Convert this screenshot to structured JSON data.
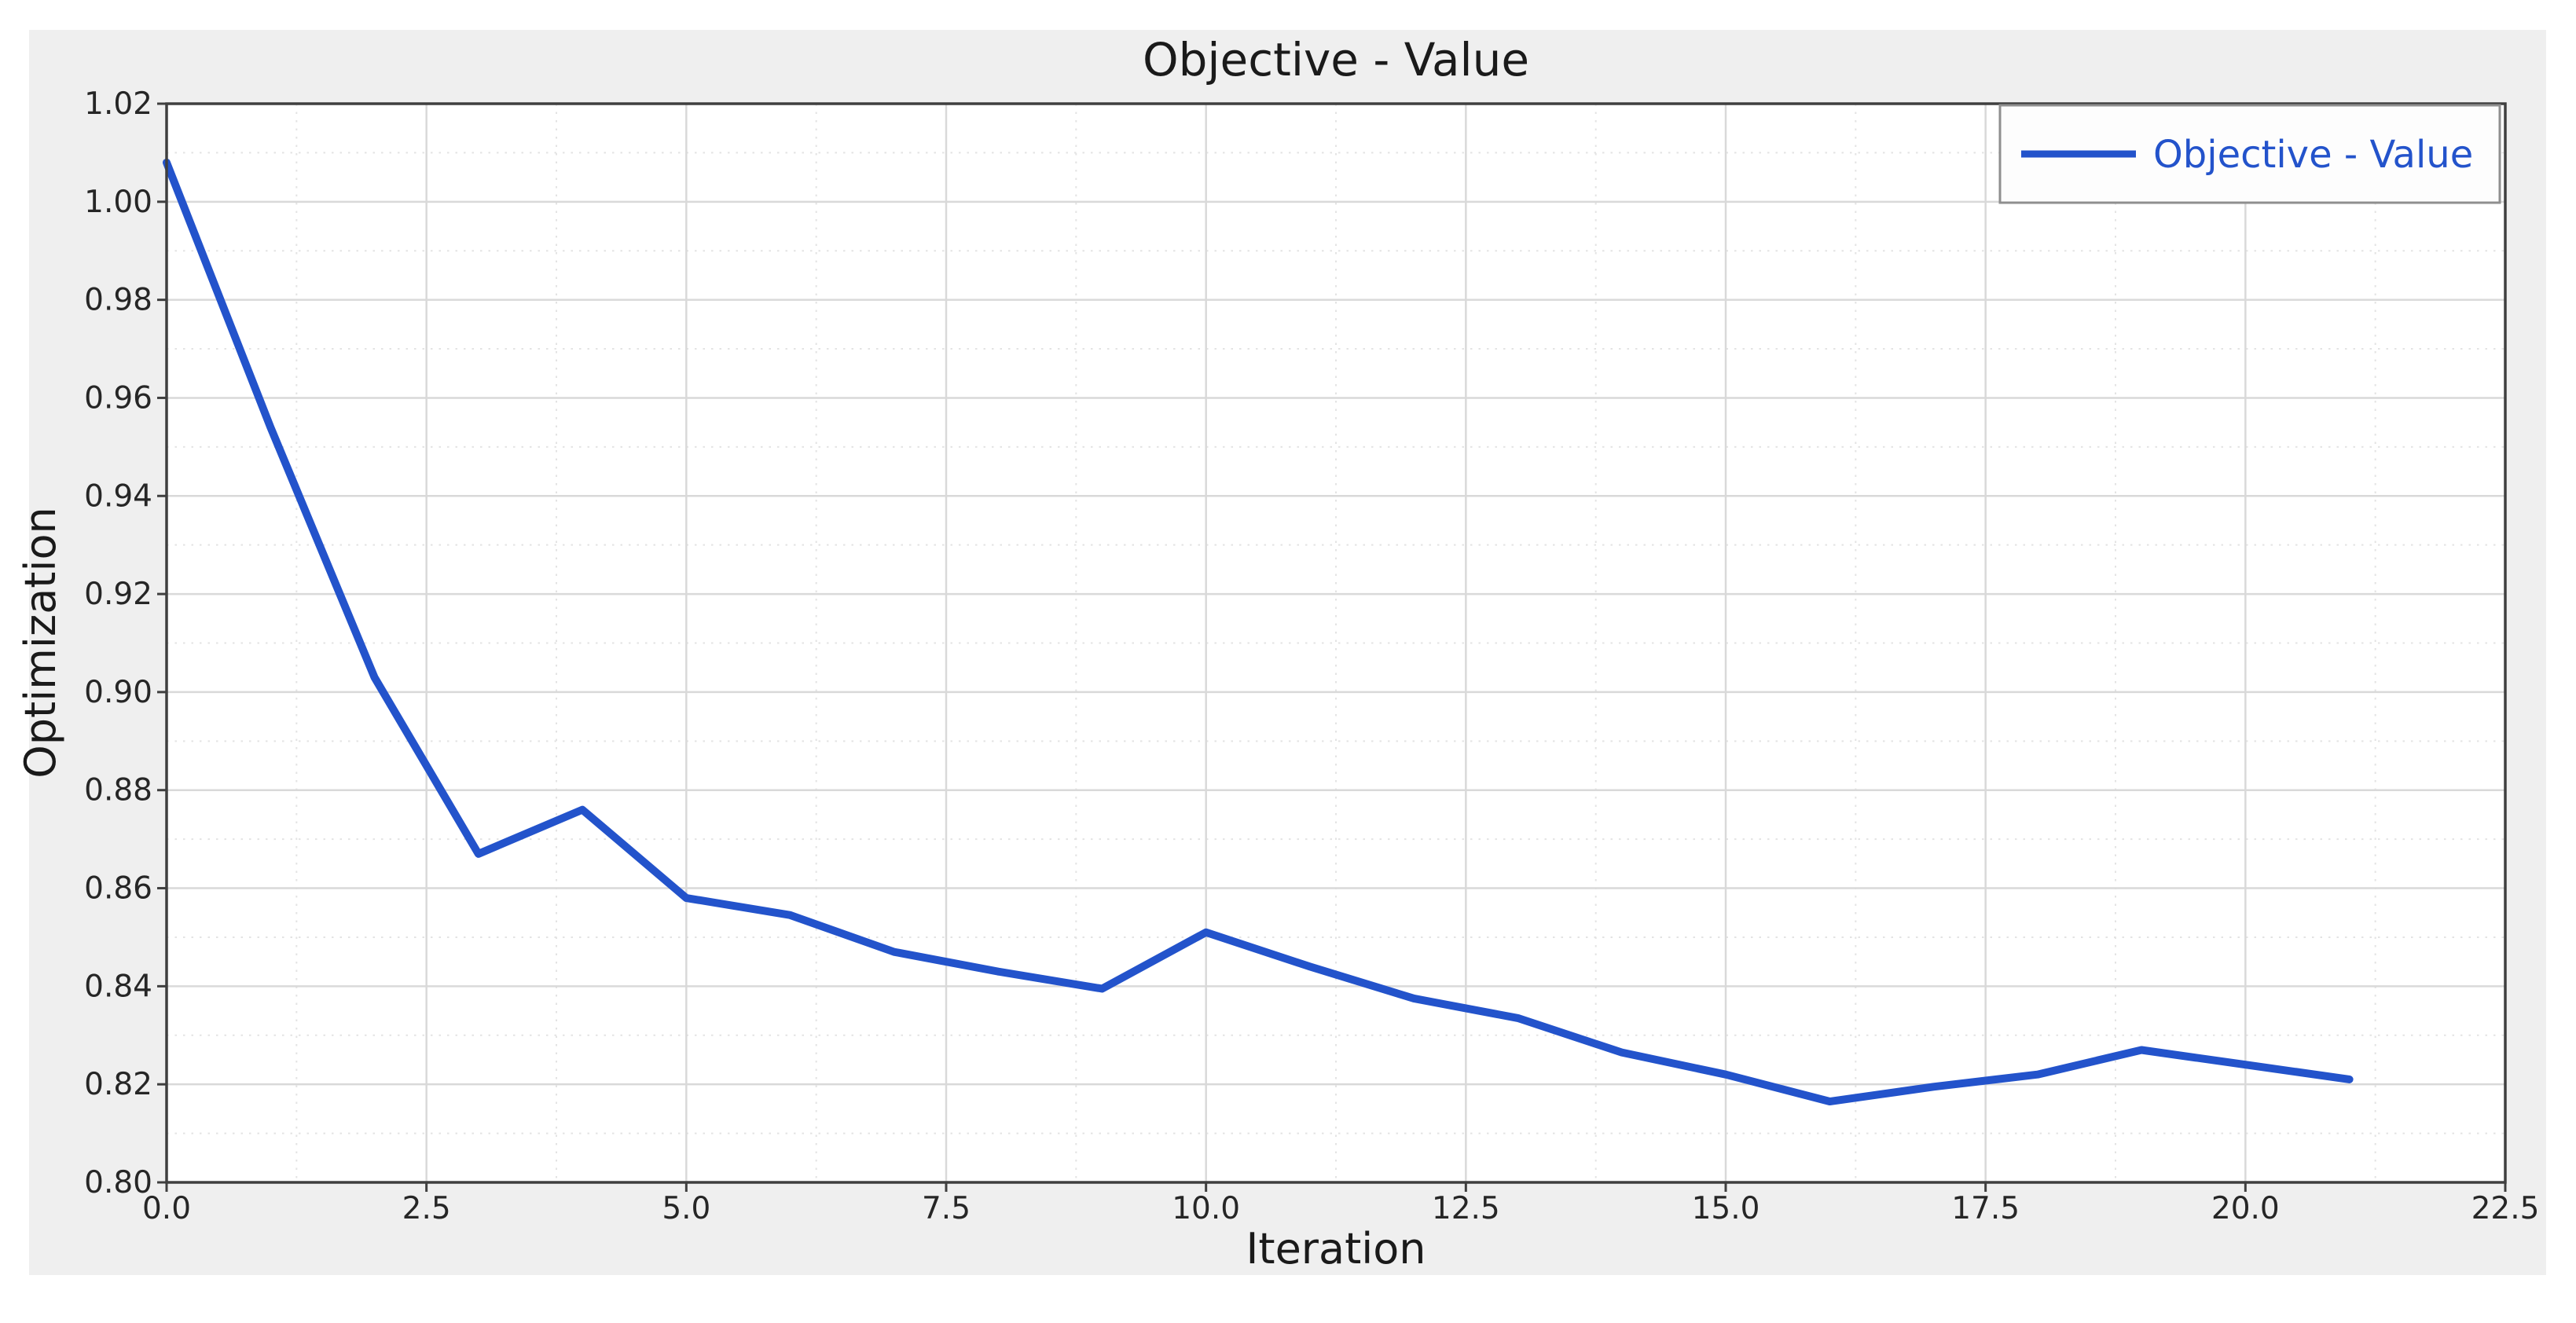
{
  "colors": {
    "line": "#2353cb",
    "figure_background": "#efefef",
    "plot_background": "#ffffff",
    "spine": "#3f3f3f",
    "grid_major": "#d9d9d9",
    "grid_minor": "#e3e3e3",
    "tick_label": "#262626",
    "legend_border": "#8f8f8f",
    "legend_text": "#2353cb"
  },
  "chart_data": {
    "type": "line",
    "title": "Objective - Value",
    "xlabel": "Iteration",
    "ylabel": "Optimization",
    "legend": {
      "position": "upper right",
      "entries": [
        "Objective - Value"
      ]
    },
    "grid": true,
    "xlim": [
      0,
      22.5
    ],
    "ylim": [
      0.8,
      1.02
    ],
    "xtick_labels": [
      "0.0",
      "2.5",
      "5.0",
      "7.5",
      "10.0",
      "12.5",
      "15.0",
      "17.5",
      "20.0",
      "22.5"
    ],
    "xtick_values": [
      0,
      2.5,
      5,
      7.5,
      10,
      12.5,
      15,
      17.5,
      20,
      22.5
    ],
    "ytick_labels": [
      "0.80",
      "0.82",
      "0.84",
      "0.86",
      "0.88",
      "0.90",
      "0.92",
      "0.94",
      "0.96",
      "0.98",
      "1.00",
      "1.02"
    ],
    "ytick_values": [
      0.8,
      0.82,
      0.84,
      0.86,
      0.88,
      0.9,
      0.92,
      0.94,
      0.96,
      0.98,
      1.0,
      1.02
    ],
    "x_minor_step": 1.25,
    "y_minor_step": 0.01,
    "x": [
      0,
      1,
      2,
      3,
      4,
      5,
      6,
      7,
      8,
      9,
      10,
      11,
      12,
      13,
      14,
      15,
      16,
      17,
      18,
      19,
      20,
      21
    ],
    "series": [
      {
        "name": "Objective - Value",
        "color": "#2353cb",
        "values": [
          1.008,
          0.954,
          0.903,
          0.867,
          0.876,
          0.858,
          0.8545,
          0.847,
          0.843,
          0.8395,
          0.851,
          0.844,
          0.8375,
          0.8335,
          0.8265,
          0.822,
          0.8165,
          0.8195,
          0.822,
          0.827,
          0.824,
          0.821
        ]
      }
    ]
  }
}
